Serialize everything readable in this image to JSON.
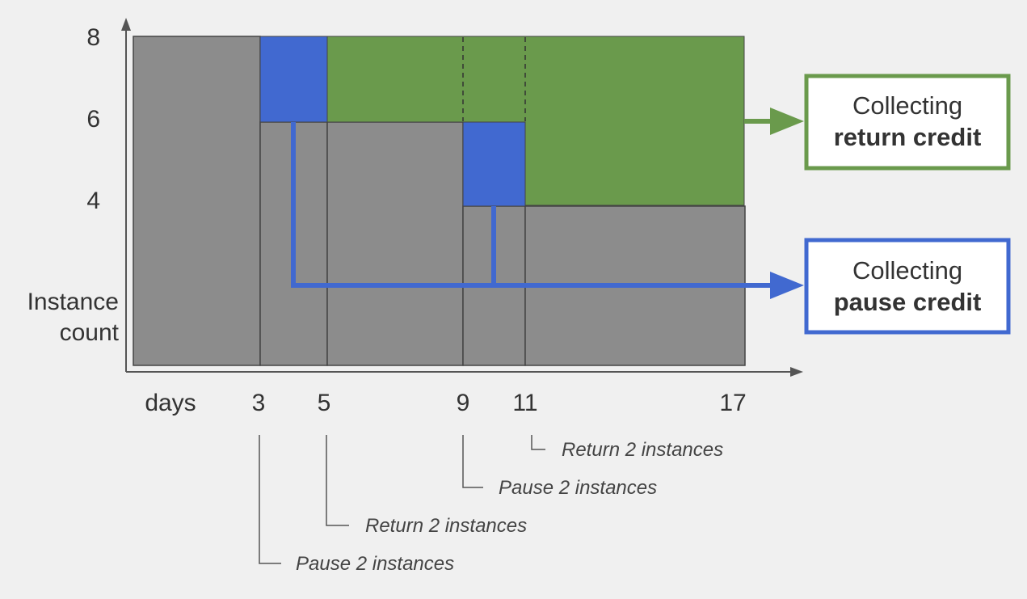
{
  "y_axis": {
    "ticks": [
      "8",
      "6",
      "4"
    ],
    "title_lines": [
      "Instance",
      "count"
    ]
  },
  "x_axis": {
    "title": "days",
    "ticks": [
      "3",
      "5",
      "9",
      "11",
      "17"
    ]
  },
  "colors": {
    "active": "#8c8c8c",
    "paused": "#4169d0",
    "returned": "#6a9a4c",
    "background": "#f0f0f0"
  },
  "legend": {
    "return_credit": {
      "line1": "Collecting",
      "line2": "return credit"
    },
    "pause_credit": {
      "line1": "Collecting",
      "line2": "pause credit"
    }
  },
  "events": [
    {
      "day": "11",
      "label": "Return 2 instances"
    },
    {
      "day": "9",
      "label": "Pause 2 instances"
    },
    {
      "day": "5",
      "label": "Return 2 instances"
    },
    {
      "day": "3",
      "label": "Pause 2 instances"
    }
  ]
}
